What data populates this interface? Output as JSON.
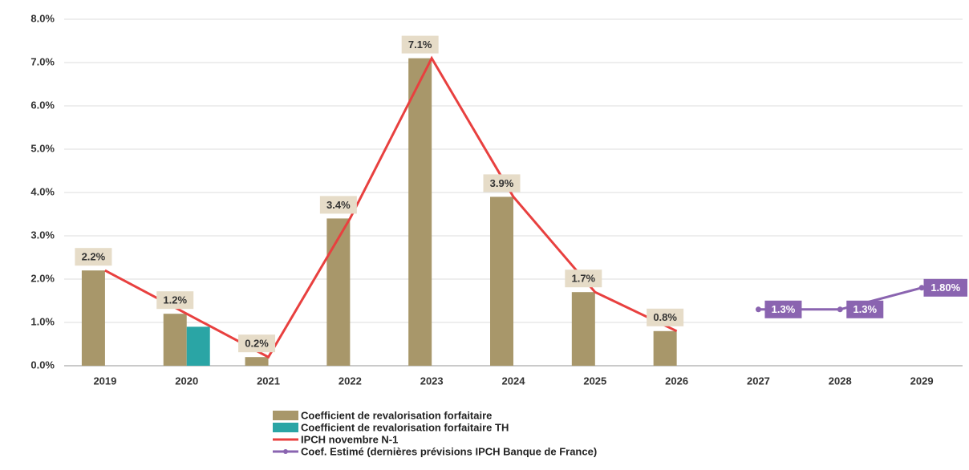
{
  "chart_data": {
    "type": "bar",
    "categories": [
      "2019",
      "2020",
      "2021",
      "2022",
      "2023",
      "2024",
      "2025",
      "2026",
      "2027",
      "2028",
      "2029"
    ],
    "ylim": [
      0,
      8
    ],
    "yticks": [
      {
        "value": 0,
        "label": "0.0%"
      },
      {
        "value": 1,
        "label": "1.0%"
      },
      {
        "value": 2,
        "label": "2.0%"
      },
      {
        "value": 3,
        "label": "3.0%"
      },
      {
        "value": 4,
        "label": "4.0%"
      },
      {
        "value": 5,
        "label": "5.0%"
      },
      {
        "value": 6,
        "label": "6.0%"
      },
      {
        "value": 7,
        "label": "7.0%"
      },
      {
        "value": 8,
        "label": "8.0%"
      }
    ],
    "grid": true,
    "series": [
      {
        "name": "Coefficient de revalorisation forfaitaire",
        "type": "bar",
        "color": "#a8976a",
        "values": [
          2.2,
          1.2,
          0.2,
          3.4,
          7.1,
          3.9,
          1.7,
          0.8,
          null,
          null,
          null
        ],
        "value_labels": [
          "2.2%",
          "1.2%",
          "0.2%",
          "3.4%",
          "7.1%",
          "3.9%",
          "1.7%",
          "0.8%",
          null,
          null,
          null
        ]
      },
      {
        "name": "Coefficient de revalorisation forfaitaire TH",
        "type": "bar",
        "color": "#2aa5a5",
        "values": [
          null,
          0.9,
          null,
          null,
          null,
          null,
          null,
          null,
          null,
          null,
          null
        ]
      },
      {
        "name": "IPCH novembre N-1",
        "type": "line",
        "color": "#e8403f",
        "values": [
          2.2,
          1.2,
          0.2,
          3.4,
          7.1,
          3.9,
          1.7,
          0.8,
          null,
          null,
          null
        ]
      },
      {
        "name": "Coef. Estimé (dernières prévisions IPCH Banque de France)",
        "type": "line",
        "color": "#8a64b0",
        "markers": true,
        "values": [
          null,
          null,
          null,
          null,
          null,
          null,
          null,
          null,
          1.3,
          1.3,
          1.8
        ],
        "value_labels": [
          null,
          null,
          null,
          null,
          null,
          null,
          null,
          null,
          "1.3%",
          "1.3%",
          "1.80%"
        ]
      }
    ],
    "legend": "bottom"
  }
}
